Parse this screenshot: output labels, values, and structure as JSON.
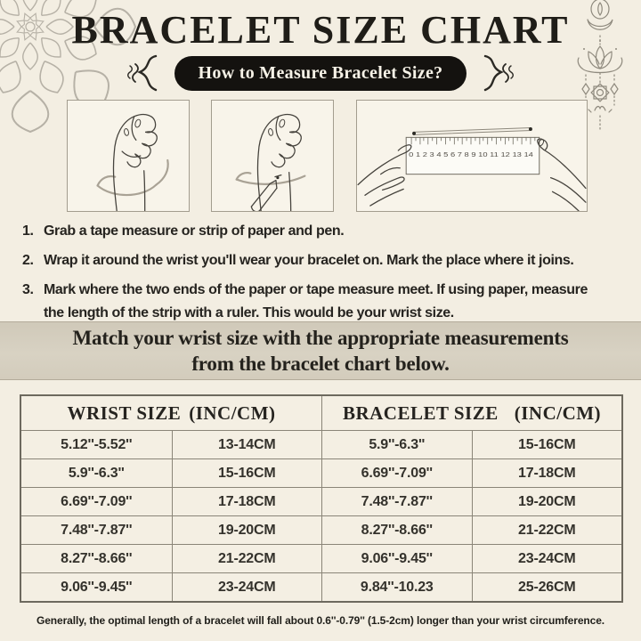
{
  "page": {
    "title": "BRACELET SIZE CHART",
    "badge": "How to Measure Bracelet Size?"
  },
  "steps": [
    {
      "num": "1.",
      "lines": [
        "Grab a tape measure or strip of paper and pen."
      ]
    },
    {
      "num": "2.",
      "lines": [
        "Wrap it around the wrist you'll wear your bracelet on. Mark the place where it joins."
      ]
    },
    {
      "num": "3.",
      "lines": [
        "Mark where the two ends of the paper or tape measure meet. If using paper, measure",
        "the length of the strip with a ruler. This would be your wrist size."
      ]
    }
  ],
  "banner": {
    "line1": "Match your wrist size with the appropriate measurements",
    "line2": "from the bracelet chart below."
  },
  "illustration": {
    "ruler_numbers": "0 1 2 3 4 5 6 7 8 9 10 11 12 13 14"
  },
  "table": {
    "header_left_label": "WRIST SIZE",
    "header_left_unit": "(INC/CM)",
    "header_right_label": "BRACELET SIZE",
    "header_right_unit": "(INC/CM)",
    "rows": [
      [
        "5.12''-5.52''",
        "13-14CM",
        "5.9''-6.3''",
        "15-16CM"
      ],
      [
        "5.9''-6.3''",
        "15-16CM",
        "6.69''-7.09''",
        "17-18CM"
      ],
      [
        "6.69''-7.09''",
        "17-18CM",
        "7.48''-7.87''",
        "19-20CM"
      ],
      [
        "7.48''-7.87''",
        "19-20CM",
        "8.27''-8.66''",
        "21-22CM"
      ],
      [
        "8.27''-8.66''",
        "21-22CM",
        "9.06''-9.45''",
        "23-24CM"
      ],
      [
        "9.06''-9.45''",
        "23-24CM",
        "9.84''-10.23",
        "25-26CM"
      ]
    ]
  },
  "footer_note": "Generally, the optimal length of a bracelet will fall about 0.6''-0.79'' (1.5-2cm) longer than your wrist circumference.",
  "colors": {
    "background": "#f3eee2",
    "banner": "#d5cebf",
    "badge": "#14120f",
    "text": "#23211c",
    "table_line": "#8a8578",
    "ornament": "#8f8a7e"
  }
}
